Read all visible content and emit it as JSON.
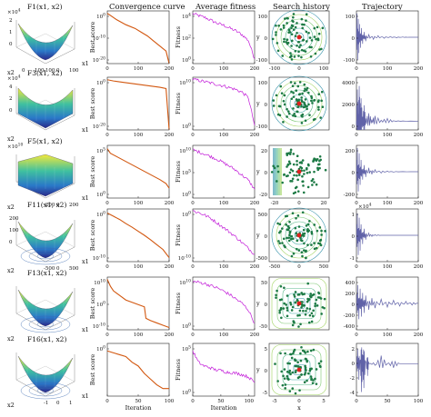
{
  "column_titles": [
    "Convergence curve",
    "Average fitness",
    "Search history",
    "Trajectory"
  ],
  "colors": {
    "convergence": "#d2570f",
    "fitness": "#c21ad8",
    "trajectory": "#6062a8",
    "search_points": "#1d7a45",
    "search_best": "#e02020",
    "axis": "#222222"
  },
  "chart_data": [
    {
      "function": "F1(x1, x2)",
      "surface": {
        "xlabel": "x1",
        "ylabel": "x2",
        "zexp": "×10^4",
        "zticks": [
          "2",
          "1",
          "0"
        ],
        "xticks": [
          "-100",
          "0",
          "100"
        ],
        "yticks": [
          "0",
          "100"
        ]
      },
      "convergence": {
        "type": "line",
        "ylabel": "Best score",
        "yscale": "log",
        "yticks": [
          "10^0",
          "10^-10",
          "10^-20"
        ],
        "ylim": [
          -20,
          1
        ],
        "xticks": [
          0,
          100,
          200
        ],
        "x": [
          0,
          10,
          30,
          60,
          90,
          110,
          130,
          150,
          170,
          190,
          200
        ],
        "y": [
          0,
          -0.8,
          -2.5,
          -4.5,
          -6,
          -7.5,
          -9,
          -11,
          -13,
          -15,
          -20
        ]
      },
      "fitness": {
        "type": "line",
        "ylabel": "Fitness",
        "yscale": "log",
        "yticks": [
          "10^4",
          "10^2",
          "10^0"
        ],
        "ylim": [
          -1,
          4.5
        ],
        "xticks": [
          0,
          100,
          200
        ],
        "x": [
          0,
          20,
          40,
          60,
          80,
          100,
          120,
          140,
          160,
          180,
          200
        ],
        "y": [
          4.2,
          4.0,
          3.8,
          3.5,
          3.2,
          3.0,
          2.7,
          2.4,
          2.0,
          1.4,
          -0.5
        ]
      },
      "search_history": {
        "type": "scatter",
        "xlim": [
          -100,
          100
        ],
        "ylim": [
          -100,
          100
        ],
        "xticks": [
          "-100",
          "0",
          "100"
        ],
        "yticks": [
          "100",
          "0",
          "-100"
        ],
        "ylabel": "y",
        "best": [
          0,
          0
        ]
      },
      "trajectory": {
        "type": "line",
        "ylim": [
          -100,
          100
        ],
        "yticks": [
          "100",
          "0",
          "-100"
        ],
        "xticks": [
          0,
          100,
          200
        ],
        "x": [
          0,
          2,
          4,
          6,
          8,
          10,
          13,
          16,
          20,
          25,
          30,
          40,
          55,
          70,
          90,
          110,
          130,
          150,
          170,
          200
        ],
        "y": [
          0,
          90,
          -85,
          70,
          -60,
          50,
          -40,
          35,
          -25,
          20,
          -15,
          10,
          -8,
          6,
          -4,
          3,
          -2,
          1,
          0,
          0
        ]
      }
    },
    {
      "function": "F3(x1, x2)",
      "surface": {
        "xlabel": "x1",
        "ylabel": "x2",
        "zexp": "×10^4",
        "zticks": [
          "4",
          "2",
          "0"
        ],
        "xticks": [],
        "yticks": []
      },
      "convergence": {
        "type": "line",
        "ylabel": "Best score",
        "yscale": "log",
        "yticks": [
          "10^0",
          "10^-20"
        ],
        "ylim": [
          -20,
          1
        ],
        "xticks": [
          0,
          100,
          200
        ],
        "x": [
          0,
          20,
          50,
          80,
          110,
          140,
          170,
          190,
          200
        ],
        "y": [
          0,
          -0.5,
          -1,
          -1.5,
          -2,
          -2.5,
          -3,
          -3.5,
          -20
        ]
      },
      "fitness": {
        "type": "line",
        "ylabel": "Fitness",
        "yscale": "log",
        "yticks": [
          "10^10",
          "10^0"
        ],
        "ylim": [
          -1,
          10.5
        ],
        "xticks": [
          0,
          100,
          200
        ],
        "x": [
          0,
          20,
          40,
          60,
          80,
          100,
          120,
          140,
          160,
          180,
          200
        ],
        "y": [
          10,
          9.8,
          9.5,
          9.2,
          8.9,
          8.6,
          8.2,
          7.8,
          7.2,
          6,
          0
        ]
      },
      "search_history": {
        "type": "scatter",
        "xlim": [
          -100,
          100
        ],
        "ylim": [
          -100,
          100
        ],
        "xticks": [],
        "yticks": [
          "100",
          "0",
          "-100"
        ],
        "ylabel": "y",
        "best": [
          0,
          0
        ]
      },
      "trajectory": {
        "type": "line",
        "ylim": [
          -1000,
          5000
        ],
        "yticks": [
          "4000",
          "2000",
          "0"
        ],
        "xticks": [
          0,
          100,
          200
        ],
        "x": [
          0,
          3,
          6,
          9,
          12,
          15,
          20,
          25,
          30,
          40,
          50,
          60,
          80,
          100,
          120,
          150,
          200
        ],
        "y": [
          0,
          3600,
          800,
          4000,
          1500,
          2600,
          500,
          1800,
          300,
          900,
          200,
          600,
          100,
          300,
          50,
          20,
          0
        ]
      }
    },
    {
      "function": "F5(x1, x2)",
      "surface": {
        "xlabel": "x1",
        "ylabel": "x2",
        "zexp": "×10^10",
        "zticks": [],
        "xticks": [
          "-200",
          "0",
          "200"
        ],
        "yticks": []
      },
      "convergence": {
        "type": "line",
        "ylabel": "Best score",
        "yscale": "log",
        "yticks": [
          "10^5",
          "10^0"
        ],
        "ylim": [
          -1,
          7
        ],
        "xticks": [
          0,
          100,
          200
        ],
        "x": [
          0,
          10,
          30,
          50,
          70,
          90,
          110,
          130,
          150,
          170,
          190,
          200
        ],
        "y": [
          6.5,
          5.8,
          5.3,
          4.8,
          4.3,
          3.8,
          3.3,
          2.8,
          2.3,
          1.8,
          1.2,
          0.5
        ]
      },
      "fitness": {
        "type": "line",
        "ylabel": "Fitness",
        "yscale": "log",
        "yticks": [
          "10^10",
          "10^5",
          "10^0"
        ],
        "ylim": [
          -1,
          11
        ],
        "xticks": [
          0,
          100,
          200
        ],
        "x": [
          0,
          20,
          40,
          60,
          80,
          100,
          120,
          140,
          160,
          180,
          200
        ],
        "y": [
          10,
          9.5,
          9,
          8.4,
          7.8,
          7,
          6.2,
          5.3,
          4.2,
          3,
          1
        ]
      },
      "search_history": {
        "type": "scatter",
        "xlim": [
          -30,
          30
        ],
        "ylim": [
          -30,
          30
        ],
        "xticks": [
          "-20",
          "0",
          "20"
        ],
        "yticks": [
          "20",
          "0",
          "-20"
        ],
        "ylabel": "y",
        "best": [
          0,
          0
        ]
      },
      "trajectory": {
        "type": "line",
        "ylim": [
          -200,
          200
        ],
        "yticks": [
          "200",
          "0",
          "-200"
        ],
        "xticks": [
          0,
          100,
          200
        ],
        "x": [
          0,
          3,
          6,
          9,
          12,
          15,
          20,
          25,
          30,
          40,
          50,
          60,
          80,
          100,
          120,
          150,
          200
        ],
        "y": [
          0,
          180,
          -150,
          140,
          -100,
          90,
          -60,
          50,
          -40,
          30,
          -20,
          15,
          -10,
          5,
          -3,
          1,
          0
        ]
      }
    },
    {
      "function": "F11(x1, x2)",
      "surface": {
        "xlabel": "x1",
        "ylabel": "x2",
        "zexp": "",
        "zticks": [
          "200",
          "100",
          "0"
        ],
        "xticks": [
          "-500",
          "0",
          "500"
        ],
        "yticks": []
      },
      "convergence": {
        "type": "line",
        "ylabel": "Best score",
        "yscale": "log",
        "yticks": [
          "10^0",
          "10^-10"
        ],
        "ylim": [
          -12,
          1
        ],
        "xticks": [
          0,
          100,
          200
        ],
        "x": [
          0,
          20,
          40,
          60,
          80,
          100,
          120,
          140,
          160,
          180,
          200
        ],
        "y": [
          0,
          -0.8,
          -1.6,
          -2.6,
          -3.5,
          -4.5,
          -5.5,
          -6.6,
          -7.8,
          -9,
          -11
        ]
      },
      "fitness": {
        "type": "line",
        "ylabel": "Fitness",
        "yscale": "log",
        "yticks": [
          "10^0",
          "10^-10"
        ],
        "ylim": [
          -12,
          2
        ],
        "xticks": [
          0,
          100,
          200
        ],
        "x": [
          0,
          20,
          40,
          60,
          80,
          100,
          120,
          140,
          160,
          180,
          200
        ],
        "y": [
          1.5,
          1,
          0.3,
          -0.6,
          -1.8,
          -3,
          -4.2,
          -5.5,
          -7,
          -8.5,
          -10
        ]
      },
      "search_history": {
        "type": "scatter",
        "xlim": [
          -500,
          500
        ],
        "ylim": [
          -500,
          500
        ],
        "xticks": [
          "-500",
          "0",
          "500"
        ],
        "yticks": [
          "500",
          "0",
          "-500"
        ],
        "ylabel": "y",
        "best": [
          0,
          0
        ]
      },
      "trajectory": {
        "type": "line",
        "yexp": "×10^4",
        "ylim": [
          -1.2,
          1.2
        ],
        "yticks": [
          "1",
          "0",
          "-1"
        ],
        "xticks": [
          0,
          100,
          200
        ],
        "x": [
          0,
          3,
          6,
          9,
          12,
          15,
          20,
          25,
          30,
          40,
          50,
          60,
          80,
          100,
          150,
          200
        ],
        "y": [
          0,
          1,
          -0.9,
          0.8,
          -0.7,
          0.5,
          -0.4,
          0.3,
          -0.2,
          0.1,
          -0.05,
          0.03,
          0,
          0,
          0,
          0
        ]
      }
    },
    {
      "function": "F13(x1, x2)",
      "surface": {
        "xlabel": "x1",
        "ylabel": "x2",
        "zexp": "",
        "zticks": [],
        "xticks": [],
        "yticks": []
      },
      "convergence": {
        "type": "line",
        "ylabel": "Best score",
        "yscale": "log",
        "yticks": [
          "10^10",
          "10^0",
          "10^-10"
        ],
        "ylim": [
          -12,
          11
        ],
        "xticks": [
          0,
          100,
          200
        ],
        "x": [
          0,
          10,
          20,
          40,
          60,
          80,
          100,
          120,
          125,
          140,
          160,
          180,
          200
        ],
        "y": [
          10,
          7,
          5,
          3,
          1,
          0,
          -1,
          -2,
          -7,
          -8,
          -9,
          -10,
          -11
        ]
      },
      "fitness": {
        "type": "line",
        "ylabel": "Fitness",
        "yscale": "log",
        "yticks": [
          "10^10",
          "10^0"
        ],
        "ylim": [
          -1,
          11
        ],
        "xticks": [
          0,
          100,
          200
        ],
        "x": [
          0,
          20,
          40,
          60,
          80,
          100,
          120,
          140,
          160,
          180,
          200
        ],
        "y": [
          10,
          9.8,
          9.5,
          9,
          8.5,
          7.8,
          7,
          6,
          5,
          3.5,
          0.5
        ]
      },
      "search_history": {
        "type": "scatter",
        "xlim": [
          -50,
          50
        ],
        "ylim": [
          -50,
          50
        ],
        "xticks": [],
        "yticks": [
          "50",
          "0",
          "-50"
        ],
        "ylabel": "y",
        "best": [
          0,
          0
        ]
      },
      "trajectory": {
        "type": "line",
        "ylim": [
          -500,
          500
        ],
        "yticks": [
          "400",
          "200",
          "0",
          "-200",
          "-400"
        ],
        "xticks": [
          0,
          100,
          200
        ],
        "x": [
          0,
          4,
          8,
          12,
          16,
          20,
          25,
          30,
          40,
          50,
          60,
          80,
          100,
          120,
          140,
          160,
          180,
          200
        ],
        "y": [
          0,
          350,
          -300,
          280,
          -250,
          200,
          -180,
          150,
          -120,
          100,
          -90,
          80,
          -70,
          60,
          -50,
          40,
          -30,
          0
        ]
      }
    },
    {
      "function": "F16(x1, x2)",
      "surface": {
        "xlabel": "x1",
        "ylabel": "x2",
        "zexp": "",
        "zticks": [],
        "xticks": [
          "-1",
          "0",
          "1"
        ],
        "yticks": []
      },
      "convergence": {
        "type": "line",
        "ylabel": "Best score",
        "yscale": "log",
        "yticks": [
          "10^0"
        ],
        "ylim": [
          -1.2,
          0.2
        ],
        "xticks": [
          0,
          50,
          100
        ],
        "x": [
          0,
          10,
          20,
          30,
          40,
          50,
          60,
          70,
          80,
          90,
          100
        ],
        "y": [
          0,
          -0.05,
          -0.1,
          -0.15,
          -0.3,
          -0.4,
          -0.6,
          -0.75,
          -0.9,
          -1,
          -1
        ]
      },
      "fitness": {
        "type": "line",
        "ylabel": "Fitness",
        "yscale": "log",
        "yticks": [
          "10^5",
          "10^0"
        ],
        "ylim": [
          -1,
          6
        ],
        "xticks": [
          0,
          50,
          100
        ],
        "x": [
          0,
          10,
          20,
          30,
          40,
          50,
          60,
          70,
          80,
          90,
          100,
          110
        ],
        "y": [
          5,
          3.5,
          3,
          2.8,
          2.5,
          2.4,
          2.2,
          2.1,
          2,
          1.8,
          1.5,
          0.8
        ]
      },
      "search_history": {
        "type": "scatter",
        "xlim": [
          -5,
          5
        ],
        "ylim": [
          -5,
          5
        ],
        "xticks": [
          "-5",
          "0",
          "5"
        ],
        "yticks": [
          "5",
          "0",
          "-5"
        ],
        "xlabel": "x",
        "ylabel": "y",
        "best": [
          0,
          0
        ]
      },
      "trajectory": {
        "type": "line",
        "ylim": [
          -4,
          2.5
        ],
        "yticks": [
          "2",
          "0",
          "-2",
          "-4"
        ],
        "xticks": [
          0,
          50,
          100
        ],
        "x": [
          0,
          2,
          4,
          6,
          8,
          10,
          12,
          15,
          18,
          20,
          30,
          40,
          50,
          60,
          70,
          80,
          90,
          100
        ],
        "y": [
          0,
          1.8,
          -2,
          0.5,
          -3.5,
          -1,
          -3,
          0.2,
          -1.5,
          0,
          -0.2,
          1,
          0,
          -0.5,
          0,
          0,
          0,
          0
        ]
      }
    }
  ],
  "x_axis_label": "Iteration",
  "search_x_label": "x"
}
